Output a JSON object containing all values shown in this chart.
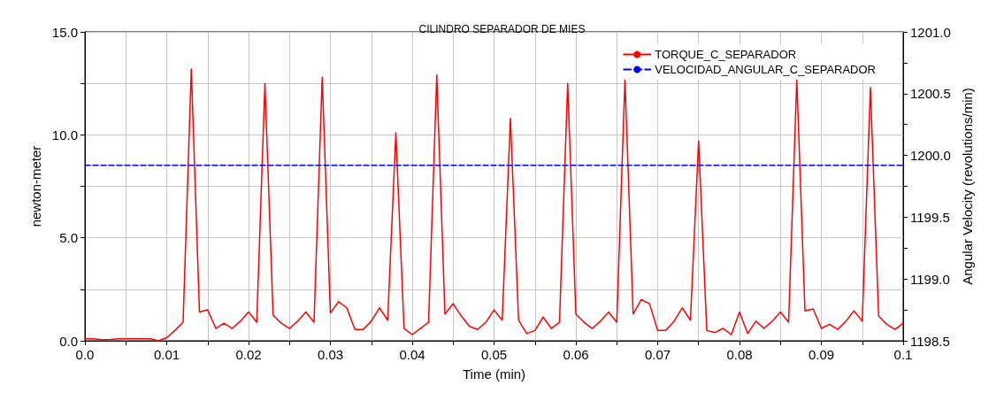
{
  "chart_data": {
    "type": "line",
    "title": "CILINDRO SEPARADOR DE MIES",
    "xlabel": "Time (min)",
    "ylabel": "newton-meter",
    "y2label": "Angular Velocity (revolutions/min)",
    "x": [
      0,
      0.001,
      0.002,
      0.003,
      0.004,
      0.005,
      0.006,
      0.007,
      0.008,
      0.009,
      0.01,
      0.011,
      0.012,
      0.013,
      0.014,
      0.015,
      0.016,
      0.017,
      0.018,
      0.019,
      0.02,
      0.021,
      0.022,
      0.023,
      0.024,
      0.025,
      0.026,
      0.027,
      0.028,
      0.029,
      0.03,
      0.031,
      0.032,
      0.033,
      0.034,
      0.035,
      0.036,
      0.037,
      0.038,
      0.039,
      0.04,
      0.041,
      0.042,
      0.043,
      0.044,
      0.045,
      0.046,
      0.047,
      0.048,
      0.049,
      0.05,
      0.051,
      0.052,
      0.053,
      0.054,
      0.055,
      0.056,
      0.057,
      0.058,
      0.059,
      0.06,
      0.061,
      0.062,
      0.063,
      0.064,
      0.065,
      0.066,
      0.067,
      0.068,
      0.069,
      0.07,
      0.071,
      0.072,
      0.073,
      0.074,
      0.075,
      0.076,
      0.077,
      0.078,
      0.079,
      0.08,
      0.081,
      0.082,
      0.083,
      0.084,
      0.085,
      0.086,
      0.087,
      0.088,
      0.089,
      0.09,
      0.091,
      0.092,
      0.093,
      0.094,
      0.095,
      0.096,
      0.097,
      0.098,
      0.099,
      0.1
    ],
    "series": [
      {
        "name": "TORQUE_C_SEPARADOR",
        "color": "#ff0000",
        "line_style": "solid",
        "values": [
          0.1,
          0.1,
          0.05,
          0.05,
          0.1,
          0.1,
          0.1,
          0.1,
          0.1,
          0.0,
          0.15,
          0.5,
          0.9,
          13.2,
          1.4,
          1.5,
          0.6,
          0.85,
          0.6,
          0.95,
          1.4,
          0.9,
          12.5,
          1.25,
          0.85,
          0.6,
          0.95,
          1.4,
          0.9,
          12.8,
          1.35,
          1.9,
          1.6,
          0.55,
          0.55,
          0.95,
          1.6,
          1.0,
          10.1,
          0.6,
          0.3,
          0.6,
          0.9,
          12.9,
          1.3,
          1.8,
          1.2,
          0.7,
          0.55,
          0.9,
          1.5,
          1.0,
          10.8,
          1.0,
          0.35,
          0.5,
          1.15,
          0.6,
          0.9,
          12.5,
          1.3,
          0.9,
          0.6,
          0.95,
          1.4,
          0.9,
          12.7,
          1.3,
          2.0,
          1.8,
          0.5,
          0.5,
          0.95,
          1.6,
          1.0,
          9.7,
          0.5,
          0.4,
          0.6,
          0.3,
          1.4,
          0.35,
          0.95,
          0.6,
          0.95,
          1.4,
          0.9,
          12.7,
          1.45,
          1.55,
          0.6,
          0.8,
          0.55,
          0.95,
          1.45,
          0.95,
          12.3,
          1.2,
          0.8,
          0.55,
          0.85
        ]
      },
      {
        "name": "VELOCIDAD_ANGULAR_C_SEPARADOR",
        "color": "#0000ff",
        "line_style": "dashed",
        "axis": "y2",
        "x": [
          0,
          0.1
        ],
        "values": [
          1199.92,
          1199.92
        ]
      }
    ],
    "xlim": [
      0,
      0.1
    ],
    "xticks": [
      {
        "value": 0,
        "label": "0.0"
      },
      {
        "value": 0.005,
        "label": null
      },
      0.01,
      {
        "value": 0.015,
        "label": null
      },
      0.02,
      {
        "value": 0.025,
        "label": null
      },
      0.03,
      {
        "value": 0.035,
        "label": null
      },
      0.04,
      {
        "value": 0.045,
        "label": null
      },
      0.05,
      {
        "value": 0.055,
        "label": null
      },
      0.06,
      {
        "value": 0.065,
        "label": null
      },
      0.07,
      {
        "value": 0.075,
        "label": null
      },
      0.08,
      {
        "value": 0.085,
        "label": null
      },
      0.09,
      {
        "value": 0.095,
        "label": null
      },
      0.1
    ],
    "ylim": [
      0,
      15
    ],
    "yticks": [
      {
        "value": 0,
        "label": "0.0"
      },
      {
        "value": 2.5,
        "label": null
      },
      {
        "value": 5,
        "label": "5.0"
      },
      {
        "value": 7.5,
        "label": null
      },
      {
        "value": 10,
        "label": "10.0"
      },
      {
        "value": 12.5,
        "label": null
      },
      {
        "value": 15,
        "label": "15.0"
      }
    ],
    "y2lim": [
      1198.5,
      1201
    ],
    "y2ticks": [
      1198.5,
      {
        "value": 1198.75,
        "label": null
      },
      {
        "value": 1199,
        "label": "1199.0"
      },
      {
        "value": 1199.25,
        "label": null
      },
      1199.5,
      {
        "value": 1199.75,
        "label": null
      },
      {
        "value": 1200,
        "label": "1200.0"
      },
      {
        "value": 1200.25,
        "label": null
      },
      1200.5,
      {
        "value": 1200.75,
        "label": null
      },
      {
        "value": 1201,
        "label": "1201.0"
      }
    ],
    "grid": true,
    "legend": "top right",
    "marker": "none"
  }
}
